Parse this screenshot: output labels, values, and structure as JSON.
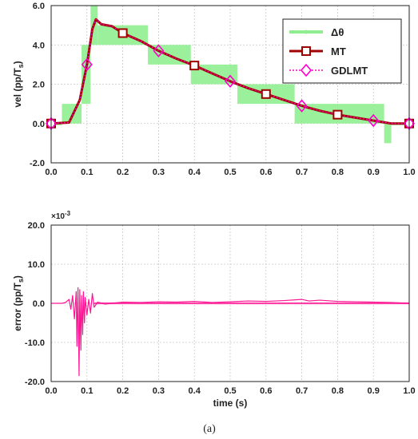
{
  "chart_data": [
    {
      "type": "line",
      "ylabel_main": "vel (pp/T",
      "ylabel_sub": "s",
      "ylabel_end": ")",
      "xlim": [
        0,
        1
      ],
      "ylim": [
        -2,
        6
      ],
      "xticks": [
        "0.0",
        "0.1",
        "0.2",
        "0.3",
        "0.4",
        "0.5",
        "0.6",
        "0.7",
        "0.8",
        "0.9",
        "1.0"
      ],
      "yticks": [
        "-2.0",
        "0.0",
        "2.0",
        "4.0",
        "6.0"
      ],
      "grid": true,
      "legend_position": "top-right",
      "series": [
        {
          "name": "Δθ",
          "color": "#90ee90",
          "style": "stepped band",
          "bands": [
            {
              "x0": 0.0,
              "x1": 0.03,
              "lo": 0,
              "hi": 0
            },
            {
              "x0": 0.03,
              "x1": 0.085,
              "lo": 0,
              "hi": 1
            },
            {
              "x0": 0.085,
              "x1": 0.11,
              "lo": 1,
              "hi": 4
            },
            {
              "x0": 0.11,
              "x1": 0.13,
              "lo": 4,
              "hi": 6
            },
            {
              "x0": 0.13,
              "x1": 0.27,
              "lo": 4,
              "hi": 5
            },
            {
              "x0": 0.27,
              "x1": 0.39,
              "lo": 3,
              "hi": 4
            },
            {
              "x0": 0.39,
              "x1": 0.52,
              "lo": 2,
              "hi": 3
            },
            {
              "x0": 0.52,
              "x1": 0.68,
              "lo": 1,
              "hi": 2
            },
            {
              "x0": 0.68,
              "x1": 0.93,
              "lo": 0,
              "hi": 1
            },
            {
              "x0": 0.93,
              "x1": 0.95,
              "lo": -1,
              "hi": 0
            },
            {
              "x0": 0.95,
              "x1": 1.0,
              "lo": 0,
              "hi": 0
            }
          ]
        },
        {
          "name": "MT",
          "color": "#a00000",
          "marker": "square",
          "x": [
            0.0,
            0.05,
            0.08,
            0.1,
            0.115,
            0.125,
            0.14,
            0.17,
            0.2,
            0.25,
            0.3,
            0.35,
            0.4,
            0.45,
            0.5,
            0.55,
            0.6,
            0.65,
            0.7,
            0.75,
            0.8,
            0.85,
            0.9,
            0.95,
            1.0
          ],
          "y": [
            0.0,
            0.05,
            1.2,
            3.0,
            4.8,
            5.3,
            5.05,
            4.95,
            4.6,
            4.2,
            3.7,
            3.3,
            2.95,
            2.55,
            2.15,
            1.8,
            1.5,
            1.2,
            0.9,
            0.65,
            0.45,
            0.3,
            0.15,
            0.0,
            0.0
          ],
          "marker_x": [
            0.0,
            0.2,
            0.4,
            0.6,
            0.8,
            1.0
          ],
          "marker_y": [
            0.0,
            4.6,
            2.95,
            1.5,
            0.45,
            0.0
          ]
        },
        {
          "name": "GDLMT",
          "color": "#ff00cc",
          "marker": "diamond",
          "marker_x": [
            0.0,
            0.1,
            0.3,
            0.5,
            0.7,
            0.9,
            1.0
          ],
          "marker_y": [
            0.0,
            3.0,
            3.7,
            2.15,
            0.9,
            0.15,
            0.0
          ]
        }
      ]
    },
    {
      "type": "line",
      "ylabel_main": "error (pp/T",
      "ylabel_sub": "s",
      "ylabel_end": ")",
      "xlabel": "time (s)",
      "exponent_label": "×10",
      "exponent_power": "-3",
      "xlim": [
        0,
        1
      ],
      "ylim": [
        -20,
        20
      ],
      "xticks": [
        "0.0",
        "0.1",
        "0.2",
        "0.3",
        "0.4",
        "0.5",
        "0.6",
        "0.7",
        "0.8",
        "0.9",
        "1.0"
      ],
      "yticks": [
        "-20.0",
        "-10.0",
        "0.0",
        "10.0",
        "20.0"
      ],
      "grid": true,
      "series": [
        {
          "color": "#ff1493",
          "x": [
            0.0,
            0.03,
            0.04,
            0.05,
            0.055,
            0.06,
            0.065,
            0.07,
            0.072,
            0.075,
            0.078,
            0.08,
            0.083,
            0.085,
            0.088,
            0.09,
            0.093,
            0.095,
            0.1,
            0.105,
            0.11,
            0.115,
            0.12,
            0.13,
            0.15,
            0.2,
            0.25,
            0.3,
            0.35,
            0.4,
            0.45,
            0.5,
            0.55,
            0.6,
            0.65,
            0.7,
            0.72,
            0.75,
            0.8,
            0.85,
            0.9,
            0.95,
            1.0
          ],
          "y": [
            0.0,
            0.0,
            0.2,
            1.0,
            -1.5,
            2.0,
            -4.0,
            3.0,
            -11.0,
            4.0,
            -18.5,
            3.5,
            -12.0,
            2.0,
            -8.0,
            3.0,
            -5.0,
            1.5,
            -3.0,
            1.0,
            -2.5,
            2.5,
            -1.0,
            0.3,
            -0.2,
            0.3,
            0.2,
            0.4,
            0.3,
            0.5,
            0.2,
            0.4,
            0.6,
            0.5,
            0.7,
            1.0,
            0.6,
            0.8,
            0.5,
            0.4,
            0.3,
            0.2,
            0.0
          ]
        }
      ]
    }
  ],
  "caption": "(a)"
}
